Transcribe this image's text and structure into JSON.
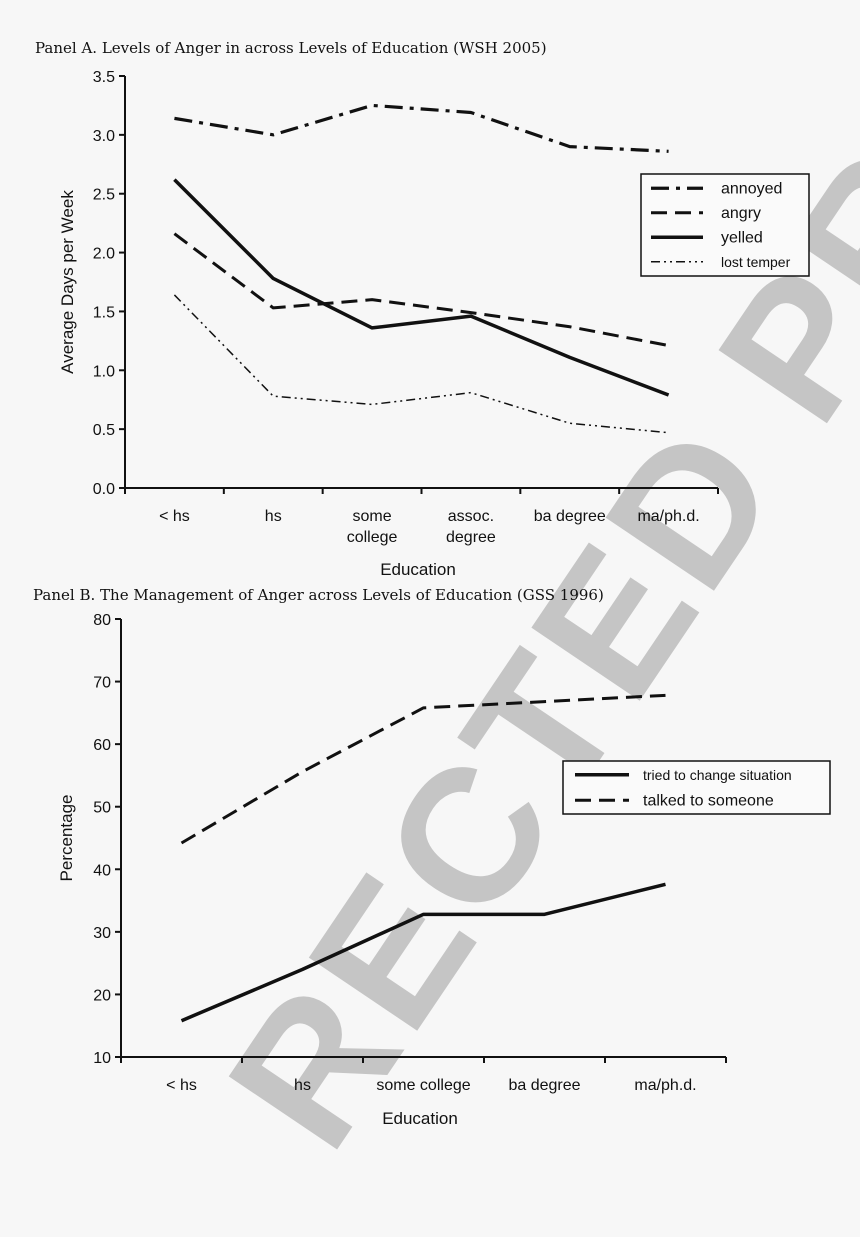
{
  "watermark": "RECTED PROOF",
  "chart_data": [
    {
      "type": "line",
      "title": "Panel A. Levels of Anger in across Levels of Education (WSH 2005)",
      "xlabel": "Education",
      "ylabel": "Average Days per Week",
      "categories": [
        [
          "< hs"
        ],
        [
          "hs"
        ],
        [
          "some",
          "college"
        ],
        [
          "assoc.",
          "degree"
        ],
        [
          "ba degree"
        ],
        [
          "ma/ph.d."
        ]
      ],
      "ylim": [
        0,
        3.5
      ],
      "yticks": [
        "0.0",
        "0.5",
        "1.0",
        "1.5",
        "2.0",
        "2.5",
        "3.0",
        "3.5"
      ],
      "legend_position": "right",
      "series": [
        {
          "name": "annoyed",
          "style": "dashdot",
          "values": [
            3.14,
            3.0,
            3.25,
            3.19,
            2.9,
            2.86
          ]
        },
        {
          "name": "angry",
          "style": "dashed",
          "values": [
            2.16,
            1.53,
            1.6,
            1.49,
            1.37,
            1.21
          ]
        },
        {
          "name": "yelled",
          "style": "solid",
          "values": [
            2.62,
            1.78,
            1.36,
            1.46,
            1.11,
            0.79
          ]
        },
        {
          "name": "lost temper",
          "style": "dashdotdot",
          "values": [
            1.64,
            0.78,
            0.71,
            0.81,
            0.55,
            0.47
          ]
        }
      ]
    },
    {
      "type": "line",
      "title": "Panel B. The Management of Anger across Levels of Education (GSS 1996)",
      "xlabel": "Education",
      "ylabel": "Percentage",
      "categories": [
        [
          "< hs"
        ],
        [
          "hs"
        ],
        [
          "some college"
        ],
        [
          "ba degree"
        ],
        [
          "ma/ph.d."
        ]
      ],
      "ylim": [
        10,
        80
      ],
      "yticks": [
        "10",
        "20",
        "30",
        "40",
        "50",
        "60",
        "70",
        "80"
      ],
      "legend_position": "right",
      "series": [
        {
          "name": "tried to change situation",
          "style": "solid",
          "values": [
            15.8,
            24.0,
            32.8,
            32.8,
            37.6
          ]
        },
        {
          "name": "talked to someone",
          "style": "dashed",
          "values": [
            44.2,
            55.6,
            65.8,
            66.8,
            67.8
          ]
        }
      ]
    }
  ]
}
